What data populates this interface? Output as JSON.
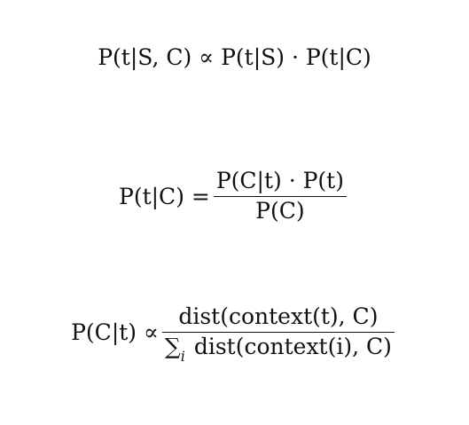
{
  "equations": {
    "eq1": {
      "text": "P(t|S, C) ∝ P(t|S) · P(t|C)"
    },
    "eq2": {
      "lhs": "P(t|C) =",
      "numerator": "P(C|t) · P(t)",
      "denominator": "P(C)"
    },
    "eq3": {
      "lhs": "P(C|t) ∝",
      "numerator": "dist(context(t), C)",
      "denominator_sum": "∑",
      "denominator_sum_index": "i",
      "denominator_rest": " dist(context(i), C)"
    }
  }
}
